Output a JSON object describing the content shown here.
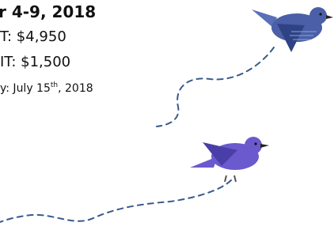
{
  "details": {
    "dates": "r 4-9, 2018",
    "cost": "T: $4,950",
    "deposit": "IT: $1,500",
    "deadline": {
      "text": "y: July 15",
      "suffix": "th",
      "year": ", 2018"
    }
  }
}
